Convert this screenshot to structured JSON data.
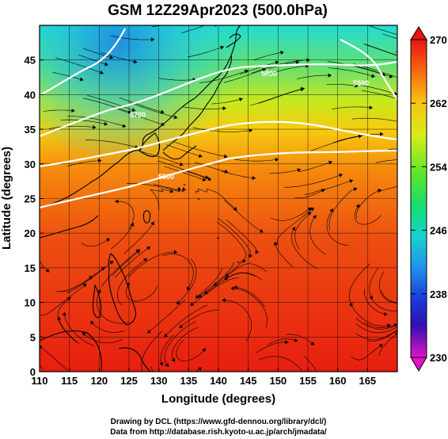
{
  "title": "GSM 12Z29Apr2023 (500.0hPa)",
  "xlabel": "Longitude (degrees)",
  "ylabel": "Latitude  (degrees)",
  "colorbar": {
    "ticks": [
      270,
      262,
      254,
      246,
      238,
      230
    ],
    "min": 230,
    "max": 270
  },
  "credits": {
    "line1": "Drawing by DCL (https://www.gfd-dennou.org/library/dcl/)",
    "line2": "Data from http://database.rish.kyoto-u.ac.jp/arch/jmadata/"
  },
  "chart_data": {
    "type": "heatmap",
    "variable": "temperature with wind streamlines and height contours",
    "xlim": [
      110,
      170
    ],
    "ylim": [
      0,
      50
    ],
    "x_ticks": [
      110,
      115,
      120,
      125,
      130,
      135,
      140,
      145,
      150,
      155,
      160,
      165
    ],
    "y_ticks": [
      0,
      5,
      10,
      15,
      20,
      25,
      30,
      35,
      40,
      45
    ],
    "contour_labels": [
      "5500",
      "5600",
      "5700",
      "5800"
    ],
    "grid": true
  }
}
